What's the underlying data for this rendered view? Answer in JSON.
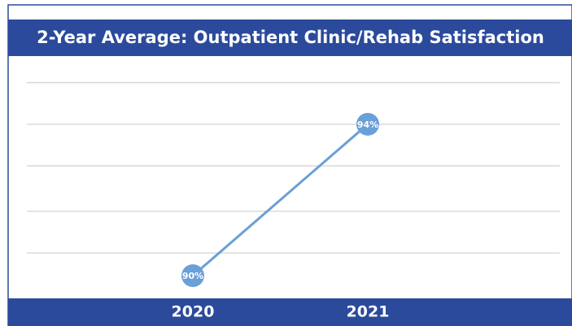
{
  "chart_data": {
    "type": "line",
    "title": "2-Year Average: Outpatient Clinic/Rehab Satisfaction",
    "categories": [
      "2020",
      "2021"
    ],
    "values": [
      90,
      94
    ],
    "value_labels": [
      "90%",
      "94%"
    ],
    "color": "#6a9fd8",
    "ylim": [
      89.4,
      95.8
    ],
    "yticks": [
      90.6,
      91.7,
      92.9,
      94,
      95.1
    ],
    "grid": true
  }
}
